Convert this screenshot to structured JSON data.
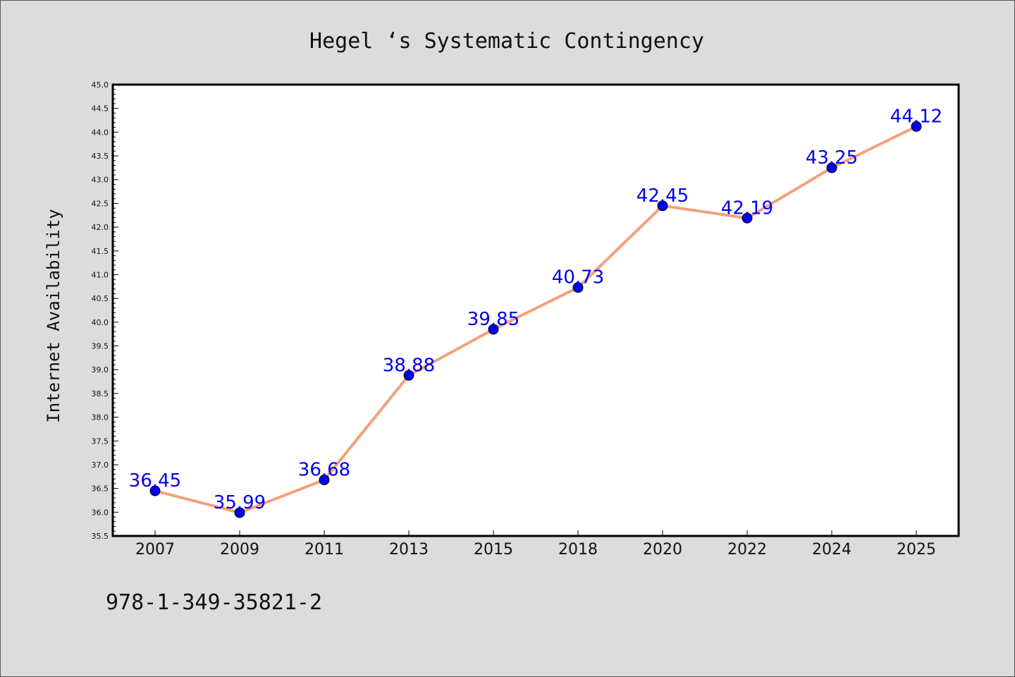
{
  "chart_data": {
    "type": "line",
    "title": "Hegel ‘s Systematic Contingency",
    "ylabel": "Internet Availability",
    "xlabel": "",
    "categories": [
      "2007",
      "2009",
      "2011",
      "2013",
      "2015",
      "2018",
      "2020",
      "2022",
      "2024",
      "2025"
    ],
    "series": [
      {
        "values": [
          36.45,
          35.99,
          36.68,
          38.88,
          39.85,
          40.73,
          42.45,
          42.19,
          43.25,
          44.12
        ],
        "data_labels": [
          "36.45",
          "35.99",
          "36.68",
          "38.88",
          "39.85",
          "40.73",
          "42.45",
          "42.19",
          "43.25",
          "44.12"
        ]
      }
    ],
    "ylim": [
      35.5,
      45.0
    ],
    "yticks": [
      "35.5",
      "36.0",
      "36.5",
      "37.0",
      "37.5",
      "38.0",
      "38.5",
      "39.0",
      "39.5",
      "40.0",
      "40.5",
      "41.0",
      "41.5",
      "42.0",
      "42.5",
      "43.0",
      "43.5",
      "44.0",
      "44.5",
      "45.0"
    ],
    "grid": false,
    "legend": "none",
    "colors": {
      "line": "#f4a07a",
      "marker": "#0000ee",
      "label": "#0000ee",
      "plot_background": "#ffffff",
      "page_background": "#dcdcdc"
    }
  },
  "footer_text": "978-1-349-35821-2"
}
